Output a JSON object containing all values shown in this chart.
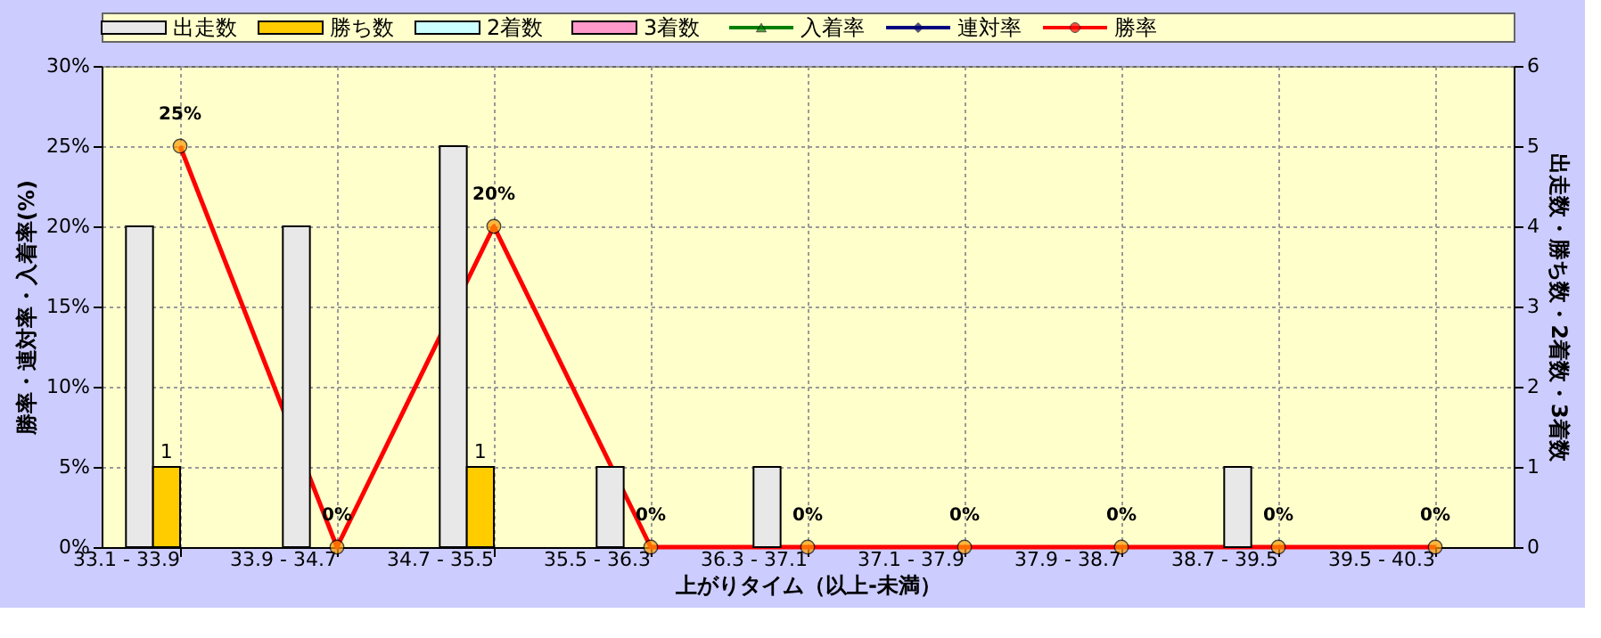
{
  "chart_data": {
    "type": "bar",
    "xlabel": "上がりタイム（以上-未満）",
    "ylabel": "勝率・連対率・入着率(%)",
    "y2label": "出走数・勝ち数・2着数・3着数",
    "categories": [
      "33.1 - 33.9",
      "33.9 - 34.7",
      "34.7 - 35.5",
      "35.5 - 36.3",
      "36.3 - 37.1",
      "37.1 - 37.9",
      "37.9 - 38.7",
      "38.7 - 39.5",
      "39.5 - 40.3"
    ],
    "series": [
      {
        "name": "出走数",
        "type": "bar",
        "axis": "y2",
        "color": "#e8e8e8",
        "values": [
          4,
          4,
          5,
          1,
          1,
          0,
          0,
          1,
          0
        ]
      },
      {
        "name": "勝ち数",
        "type": "bar",
        "axis": "y2",
        "color": "#ffcc00",
        "values": [
          1,
          0,
          1,
          0,
          0,
          0,
          0,
          0,
          0
        ],
        "value_labels": [
          "1",
          null,
          "1",
          null,
          null,
          null,
          null,
          null,
          null
        ]
      },
      {
        "name": "2着数",
        "type": "bar",
        "axis": "y2",
        "color": "#ccffff",
        "values": [
          0,
          0,
          0,
          0,
          0,
          0,
          0,
          0,
          0
        ]
      },
      {
        "name": "3着数",
        "type": "bar",
        "axis": "y2",
        "color": "#ff99cc",
        "values": [
          0,
          0,
          0,
          0,
          0,
          0,
          0,
          0,
          0
        ]
      },
      {
        "name": "入着率",
        "type": "line",
        "color": "#008000",
        "marker": "triangle",
        "values": [
          null,
          null,
          null,
          null,
          null,
          null,
          null,
          null,
          null
        ]
      },
      {
        "name": "連対率",
        "type": "line",
        "color": "#000080",
        "marker": "diamond",
        "values": [
          null,
          null,
          null,
          null,
          null,
          null,
          null,
          null,
          null
        ]
      },
      {
        "name": "勝率",
        "type": "line",
        "color": "#ff0000",
        "marker": "circle",
        "values": [
          25,
          0,
          20,
          0,
          0,
          0,
          0,
          0,
          0
        ],
        "value_labels": [
          "25%",
          "0%",
          "20%",
          "0%",
          "0%",
          "0%",
          "0%",
          "0%",
          "0%"
        ]
      }
    ],
    "ylim": [
      0,
      30
    ],
    "yticks": [
      {
        "value": 0,
        "label": "0%"
      },
      {
        "value": 5,
        "label": "5%"
      },
      {
        "value": 10,
        "label": "10%"
      },
      {
        "value": 15,
        "label": "15%"
      },
      {
        "value": 20,
        "label": "20%"
      },
      {
        "value": 25,
        "label": "25%"
      },
      {
        "value": 30,
        "label": "30%"
      }
    ],
    "y2lim": [
      0,
      6
    ],
    "y2ticks": [
      0,
      1,
      2,
      3,
      4,
      5,
      6
    ],
    "grid": true,
    "legend": "top left"
  }
}
